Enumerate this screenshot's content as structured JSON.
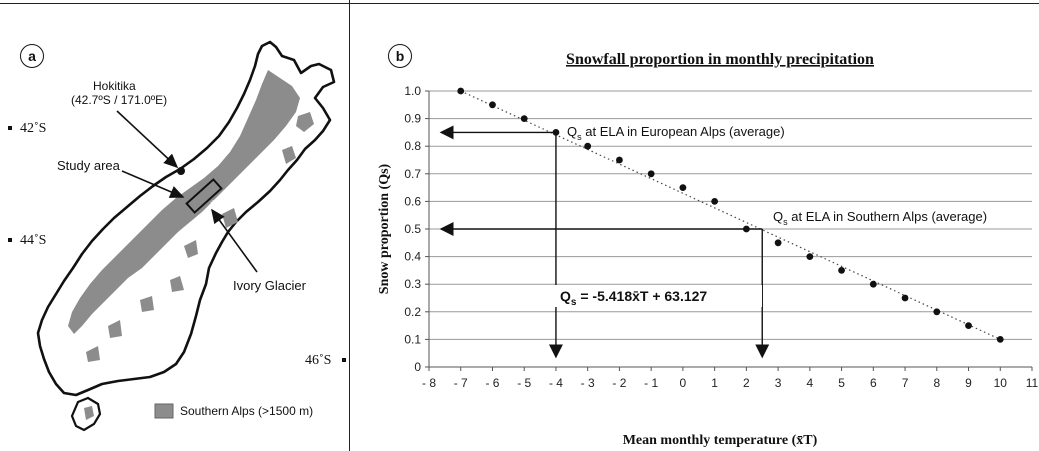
{
  "panel_a": {
    "label": "a",
    "hokitika_name": "Hokitika",
    "hokitika_coords": "(42.7ºS / 171.0ºE)",
    "study_area": "Study area",
    "glacier": "Ivory Glacier",
    "lat_42": "42˚S",
    "lat_44": "44˚S",
    "lat_46": "46˚S",
    "legend": "Southern Alps (>1500 m)"
  },
  "panel_b": {
    "label": "b",
    "annotation_europe_prefix": "Q",
    "annotation_europe_sub": "s",
    "annotation_europe_text": " at ELA in European Alps (average)",
    "annotation_south_prefix": "Q",
    "annotation_south_sub": "s",
    "annotation_south_text": " at ELA in Southern Alps (average)",
    "equation_prefix": "Q",
    "equation_sub": "s",
    "equation_text": " = -5.418x̄T + 63.127"
  },
  "chart_data": {
    "type": "scatter",
    "title": "Snowfall proportion in monthly precipitation",
    "xlabel": "Mean monthly temperature (x̄T)",
    "ylabel": "Snow proportion (Qs)",
    "xlim": [
      -8,
      11
    ],
    "ylim": [
      0,
      1.0
    ],
    "x_ticks": [
      -8,
      -7,
      -6,
      -5,
      -4,
      -3,
      -2,
      -1,
      0,
      1,
      2,
      3,
      4,
      5,
      6,
      7,
      8,
      9,
      10,
      11
    ],
    "y_ticks": [
      0,
      0.1,
      0.2,
      0.3,
      0.4,
      0.5,
      0.6,
      0.7,
      0.8,
      0.9,
      1.0
    ],
    "x_tick_labels": [
      "- 8",
      "- 7",
      "- 6",
      "- 5",
      "- 4",
      "- 3",
      "- 2",
      "- 1",
      "0",
      "1",
      "2",
      "3",
      "4",
      "5",
      "6",
      "7",
      "8",
      "9",
      "10",
      "11"
    ],
    "y_tick_labels": [
      "0",
      "0.1",
      "0.2",
      "0.3",
      "0.4",
      "0.5",
      "0.6",
      "0.7",
      "0.8",
      "0.9",
      "1.0"
    ],
    "grid": true,
    "points": [
      {
        "x": -7,
        "y": 1.0
      },
      {
        "x": -6,
        "y": 0.95
      },
      {
        "x": -5,
        "y": 0.9
      },
      {
        "x": -4,
        "y": 0.85
      },
      {
        "x": -3,
        "y": 0.8
      },
      {
        "x": -2,
        "y": 0.75
      },
      {
        "x": -1,
        "y": 0.7
      },
      {
        "x": 0,
        "y": 0.65
      },
      {
        "x": 1,
        "y": 0.6
      },
      {
        "x": 2,
        "y": 0.5
      },
      {
        "x": 3,
        "y": 0.45
      },
      {
        "x": 4,
        "y": 0.4
      },
      {
        "x": 5,
        "y": 0.35
      },
      {
        "x": 6,
        "y": 0.3
      },
      {
        "x": 7,
        "y": 0.25
      },
      {
        "x": 8,
        "y": 0.2
      },
      {
        "x": 9,
        "y": 0.15
      },
      {
        "x": 10,
        "y": 0.1
      }
    ],
    "trendline": {
      "x": [
        -7,
        10
      ],
      "y": [
        1.0,
        0.1
      ],
      "style": "dotted"
    },
    "markers": [
      {
        "name": "European Alps",
        "x": -4,
        "y": 0.85
      },
      {
        "name": "Southern Alps",
        "x": 2.5,
        "y": 0.5
      }
    ]
  }
}
